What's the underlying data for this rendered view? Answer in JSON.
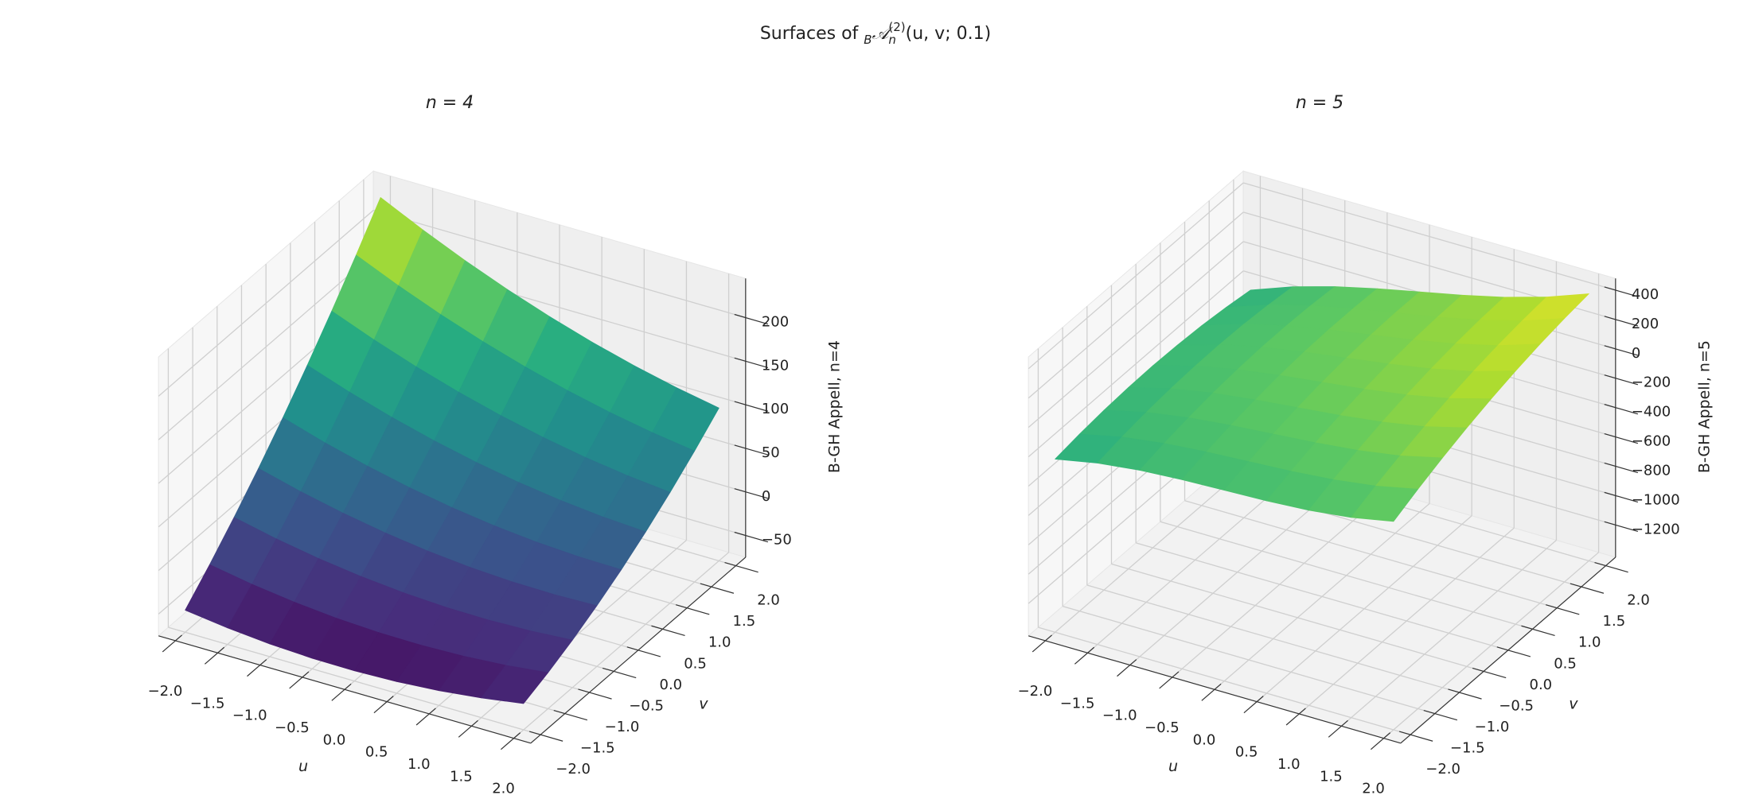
{
  "title": {
    "prefix": "Surfaces of ",
    "left_sub": "B",
    "symbol": "𝒜",
    "sub": "n",
    "sup": "(2)",
    "args": "(u, v; 0.1)"
  },
  "chart_data": [
    {
      "type": "surface",
      "title": "n = 4",
      "xlabel": "u",
      "ylabel": "v",
      "zlabel": "B-GH Appell, n=4",
      "colormap": "viridis",
      "x": [
        -2,
        -1.5,
        -1,
        -0.5,
        0,
        0.5,
        1,
        1.5,
        2
      ],
      "y": [
        -2,
        -1.5,
        -1,
        -0.5,
        0,
        0.5,
        1,
        1.5,
        2
      ],
      "z": [
        [
          -49.6,
          -56.0,
          -60.4,
          -62.8,
          -63.2,
          -61.6,
          -58.0,
          -52.4,
          -44.8
        ],
        [
          -21.7,
          -30.2,
          -36.7,
          -41.2,
          -43.7,
          -44.2,
          -42.7,
          -39.2,
          -33.7
        ],
        [
          8.3,
          -2.3,
          -10.9,
          -17.5,
          -22.1,
          -24.7,
          -25.3,
          -23.9,
          -20.5
        ],
        [
          40.3,
          27.6,
          16.9,
          8.2,
          1.5,
          -3.2,
          -5.9,
          -6.6,
          -5.3
        ],
        [
          74.2,
          59.4,
          46.6,
          35.8,
          27,
          20.2,
          15.4,
          12.6,
          11.8
        ],
        [
          110.2,
          93.3,
          78.4,
          65.5,
          54.6,
          45.7,
          38.8,
          33.9,
          31.0
        ],
        [
          148.1,
          129.1,
          112.1,
          97.1,
          84.1,
          73.1,
          64.1,
          57.1,
          52.1
        ],
        [
          188.1,
          167.0,
          147.9,
          130.8,
          115.7,
          102.6,
          91.5,
          82.4,
          75.3
        ],
        [
          230.0,
          206.8,
          185.6,
          166.4,
          149.2,
          134.0,
          120.8,
          109.6,
          100.4
        ]
      ],
      "xlim": [
        -2.2,
        2.2
      ],
      "ylim": [
        -2.2,
        2.2
      ],
      "zlim": [
        -75,
        245
      ],
      "xticks": [
        {
          "value": -2,
          "label": "−2.0"
        },
        {
          "value": -1.5,
          "label": "−1.5"
        },
        {
          "value": -1,
          "label": "−1.0"
        },
        {
          "value": -0.5,
          "label": "−0.5"
        },
        {
          "value": 0,
          "label": "0.0"
        },
        {
          "value": 0.5,
          "label": "0.5"
        },
        {
          "value": 1,
          "label": "1.0"
        },
        {
          "value": 1.5,
          "label": "1.5"
        },
        {
          "value": 2,
          "label": "2.0"
        }
      ],
      "yticks": [
        {
          "value": -2,
          "label": "−2.0"
        },
        {
          "value": -1.5,
          "label": "−1.5"
        },
        {
          "value": -1,
          "label": "−1.0"
        },
        {
          "value": -0.5,
          "label": "−0.5"
        },
        {
          "value": 0,
          "label": "0.0"
        },
        {
          "value": 0.5,
          "label": "0.5"
        },
        {
          "value": 1,
          "label": "1.0"
        },
        {
          "value": 1.5,
          "label": "1.5"
        },
        {
          "value": 2,
          "label": "2.0"
        }
      ],
      "zticks": [
        {
          "value": -50,
          "label": "−50"
        },
        0,
        50,
        100,
        150,
        200
      ],
      "grid": true
    },
    {
      "type": "surface",
      "title": "n = 5",
      "xlabel": "u",
      "ylabel": "v",
      "zlabel": "B-GH Appell, n=5",
      "colormap": "viridis",
      "x": [
        -2,
        -1.5,
        -1,
        -0.5,
        0,
        0.5,
        1,
        1.5,
        2
      ],
      "y": [
        -2,
        -1.5,
        -1,
        -0.5,
        0,
        0.5,
        1,
        1.5,
        2
      ],
      "z": [
        [
          -240,
          -184,
          -150,
          -131,
          -120,
          -109,
          -90,
          -56,
          0
        ],
        [
          -214,
          -151,
          -111,
          -86,
          -69,
          -51,
          -26,
          14,
          76
        ],
        [
          -195,
          -126,
          -80,
          -49,
          -25,
          -1,
          30,
          76,
          145
        ],
        [
          -184,
          -109,
          -56,
          -19,
          11,
          41,
          79,
          131,
          206
        ],
        [
          -180,
          -99,
          -40,
          4,
          40,
          76,
          120,
          179,
          260
        ],
        [
          -184,
          -96,
          -31,
          19,
          61,
          104,
          154,
          219,
          306
        ],
        [
          -195,
          -101,
          -30,
          26,
          75,
          124,
          180,
          251,
          345
        ],
        [
          -214,
          -114,
          -36,
          26,
          81,
          136,
          199,
          276,
          376
        ],
        [
          -240,
          -134,
          -50,
          19,
          80,
          141,
          210,
          294,
          400
        ]
      ],
      "xlim": [
        -2.2,
        2.2
      ],
      "ylim": [
        -2.2,
        2.2
      ],
      "zlim": [
        -1420,
        480
      ],
      "xticks": [
        {
          "value": -2,
          "label": "−2.0"
        },
        {
          "value": -1.5,
          "label": "−1.5"
        },
        {
          "value": -1,
          "label": "−1.0"
        },
        {
          "value": -0.5,
          "label": "−0.5"
        },
        {
          "value": 0,
          "label": "0.0"
        },
        {
          "value": 0.5,
          "label": "0.5"
        },
        {
          "value": 1,
          "label": "1.0"
        },
        {
          "value": 1.5,
          "label": "1.5"
        },
        {
          "value": 2,
          "label": "2.0"
        }
      ],
      "yticks": [
        {
          "value": -2,
          "label": "−2.0"
        },
        {
          "value": -1.5,
          "label": "−1.5"
        },
        {
          "value": -1,
          "label": "−1.0"
        },
        {
          "value": -0.5,
          "label": "−0.5"
        },
        {
          "value": 0,
          "label": "0.0"
        },
        {
          "value": 0.5,
          "label": "0.5"
        },
        {
          "value": 1,
          "label": "1.0"
        },
        {
          "value": 1.5,
          "label": "1.5"
        },
        {
          "value": 2,
          "label": "2.0"
        }
      ],
      "zticks": [
        {
          "value": -1200,
          "label": "−1200"
        },
        {
          "value": -1000,
          "label": "−1000"
        },
        {
          "value": -800,
          "label": "−800"
        },
        {
          "value": -600,
          "label": "−600"
        },
        {
          "value": -400,
          "label": "−400"
        },
        {
          "value": -200,
          "label": "−200"
        },
        0,
        200,
        400
      ],
      "grid": true
    }
  ]
}
